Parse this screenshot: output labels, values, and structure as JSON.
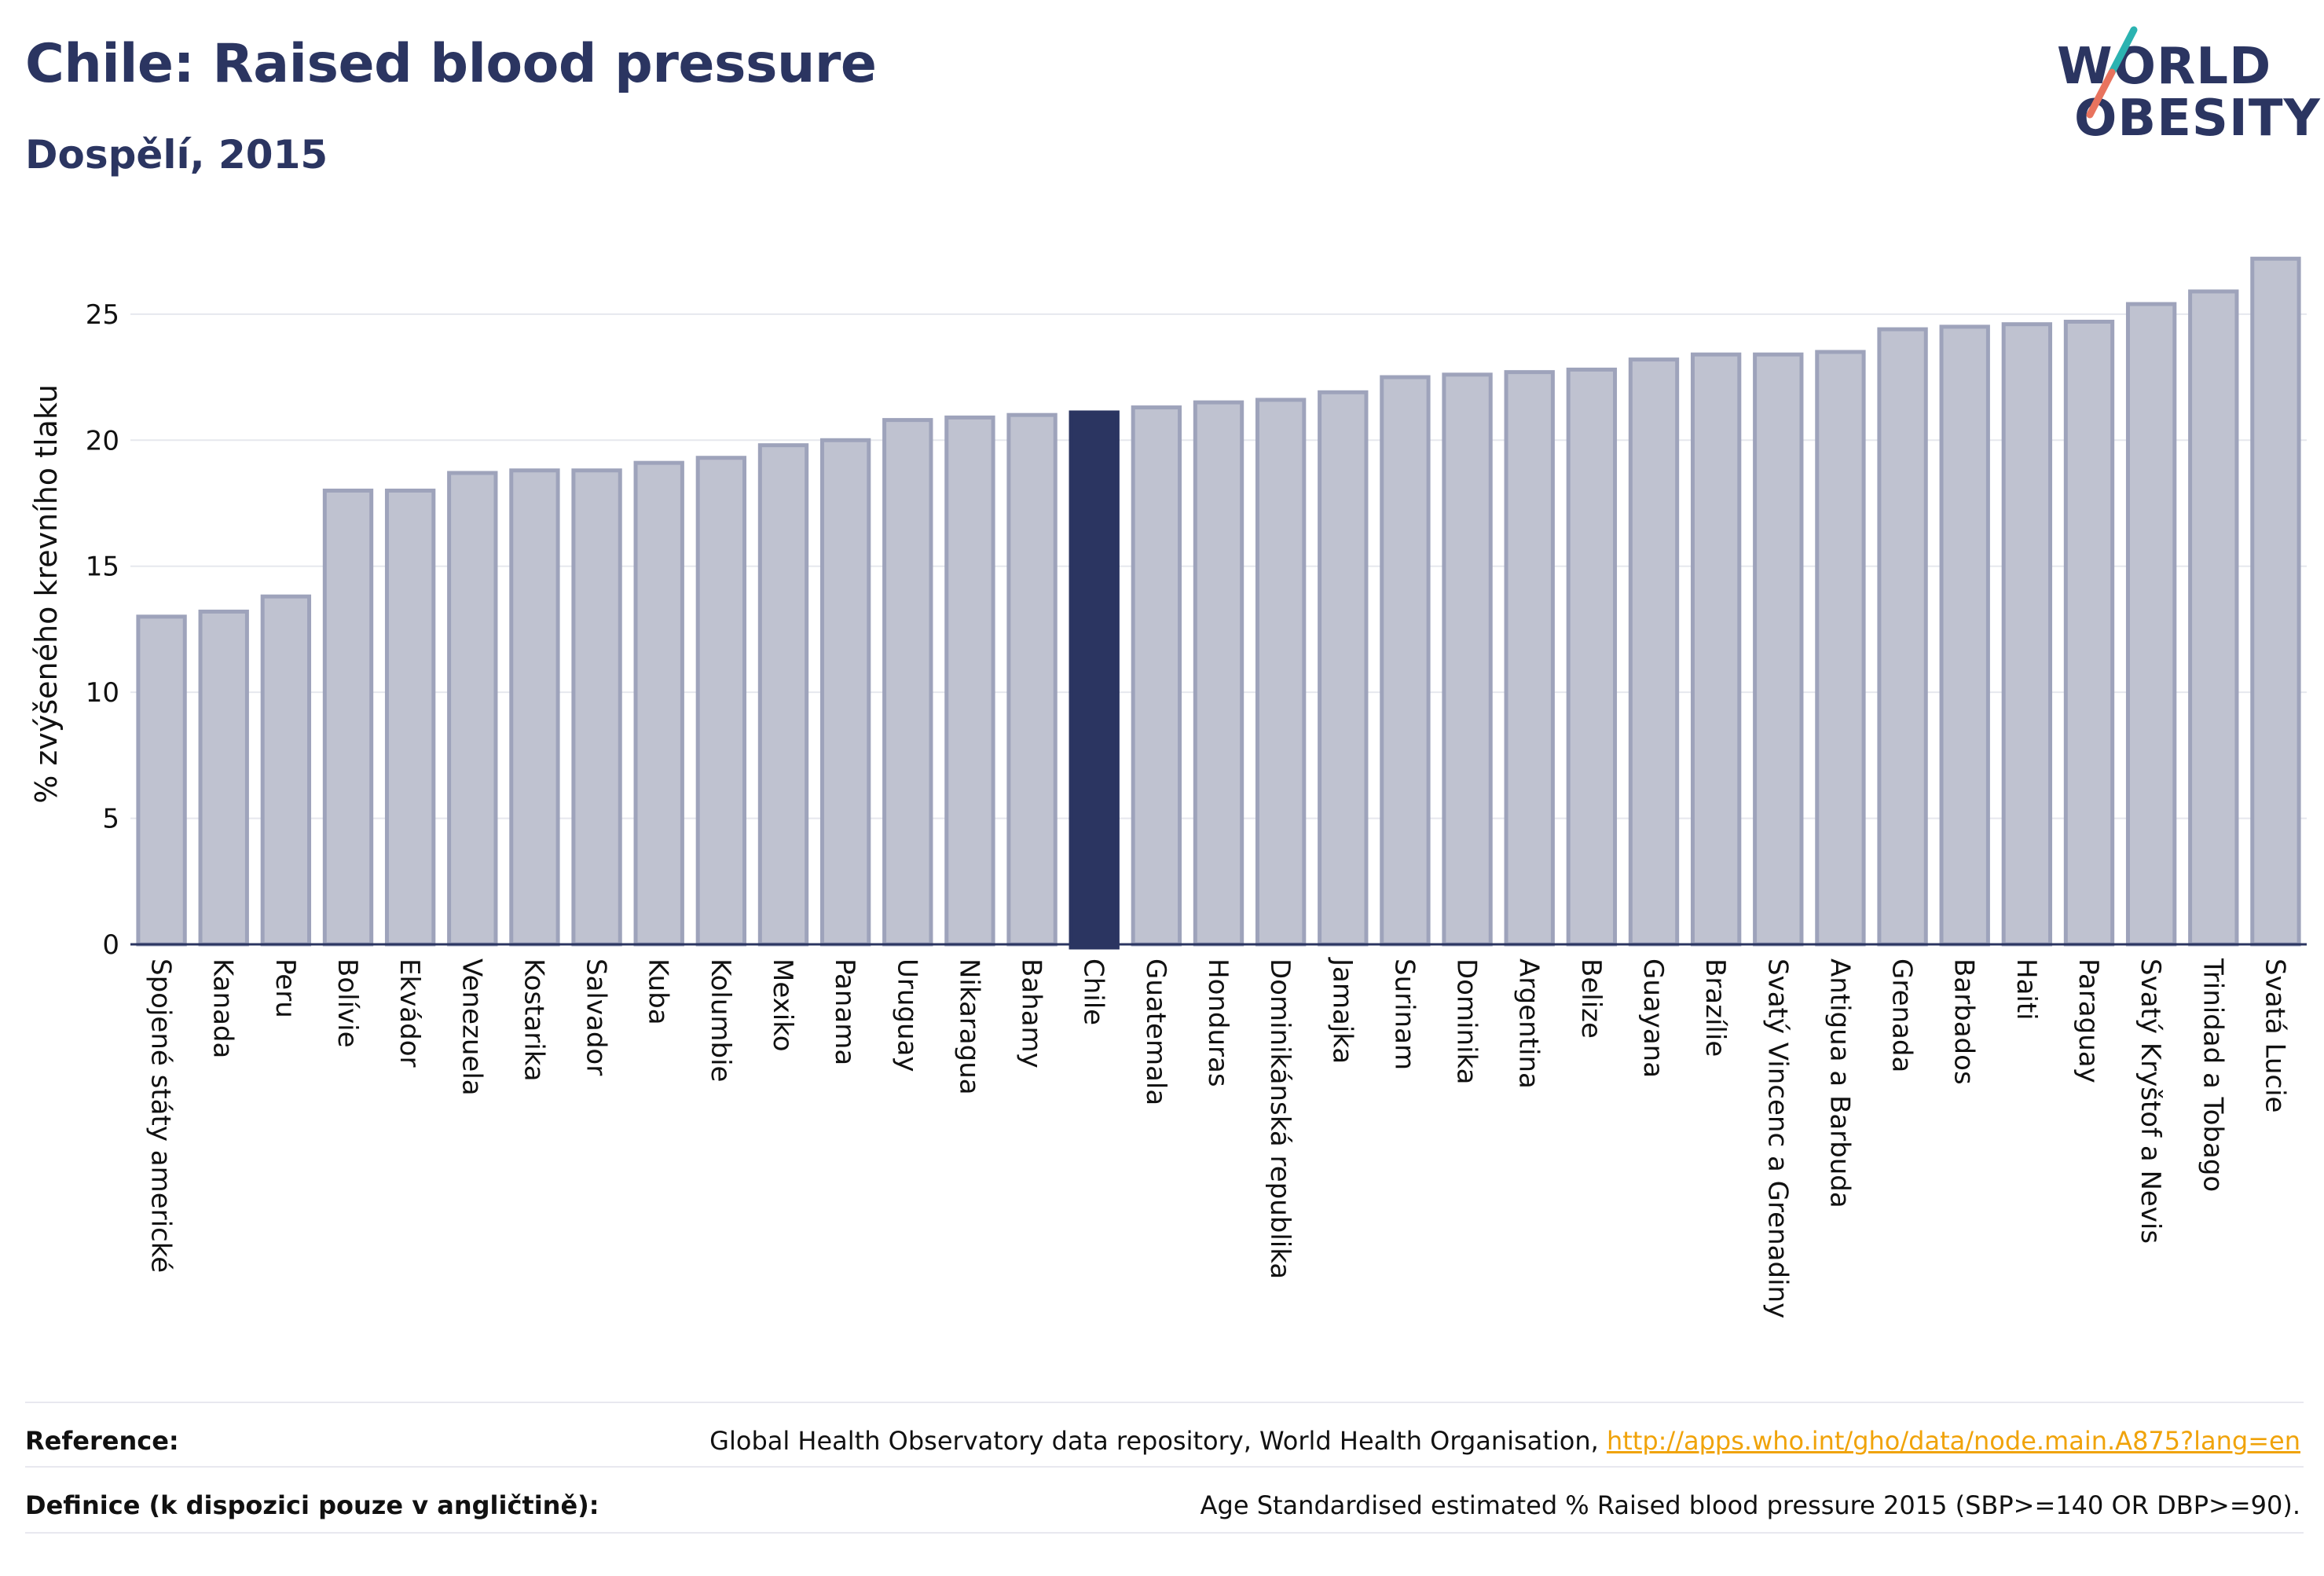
{
  "header": {
    "title": "Chile: Raised blood pressure",
    "subtitle": "Dospělí, 2015"
  },
  "logo": {
    "line1": "WORLD",
    "line2": "OBESITY",
    "accent_colors": [
      "#2bb3b1",
      "#e8735e"
    ]
  },
  "chart_data": {
    "type": "bar",
    "title": "",
    "xlabel": "",
    "ylabel": "% zvýšeného krevního tlaku",
    "ylim": [
      0,
      27.8
    ],
    "yticks": [
      0,
      5,
      10,
      15,
      20,
      25
    ],
    "grid": true,
    "highlight_category": "Chile",
    "colors": {
      "bar": "#bfc2d0",
      "bar_edge": "#9ea3bb",
      "highlight": "#2b3561"
    },
    "categories": [
      "Spojené státy americké",
      "Kanada",
      "Peru",
      "Bolívie",
      "Ekvádor",
      "Venezuela",
      "Kostarika",
      "Salvador",
      "Kuba",
      "Kolumbie",
      "Mexiko",
      "Panama",
      "Uruguay",
      "Nikaragua",
      "Bahamy",
      "Chile",
      "Guatemala",
      "Honduras",
      "Dominikánská republika",
      "Jamajka",
      "Surinam",
      "Dominika",
      "Argentina",
      "Belize",
      "Guayana",
      "Brazílie",
      "Svatý Vincenc a Grenadiny",
      "Antigua a Barbuda",
      "Grenada",
      "Barbados",
      "Haiti",
      "Paraguay",
      "Svatý Kryštof a Nevis",
      "Trinidad a Tobago",
      "Svatá Lucie"
    ],
    "values": [
      13.0,
      13.2,
      13.8,
      18.0,
      18.0,
      18.7,
      18.8,
      18.8,
      19.1,
      19.3,
      19.8,
      20.0,
      20.8,
      20.9,
      21.0,
      21.1,
      21.3,
      21.5,
      21.6,
      21.9,
      22.5,
      22.6,
      22.7,
      22.8,
      23.2,
      23.4,
      23.4,
      23.5,
      24.4,
      24.5,
      24.6,
      24.7,
      25.4,
      25.9,
      27.2
    ]
  },
  "footer": {
    "reference_label": "Reference:",
    "reference_text": "Global Health Observatory data repository, World Health Organisation, ",
    "reference_link": "http://apps.who.int/gho/data/node.main.A875?lang=en",
    "definition_label": "Definice (k dispozici pouze v angličtině):",
    "definition_text": "Age Standardised estimated % Raised blood pressure 2015 (SBP>=140 OR DBP>=90)."
  }
}
